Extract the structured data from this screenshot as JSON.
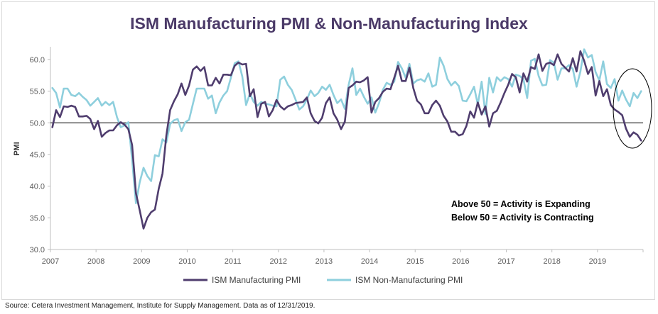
{
  "title": "ISM Manufacturing PMI & Non-Manufacturing Index",
  "source": "Source: Cetera Investment Management, Institute for Supply Management. Data as of 12/31/2019.",
  "annotation_lines": [
    "Above 50 = Activity is Expanding",
    "Below 50 = Activity is Contracting"
  ],
  "colors": {
    "manufacturing": "#4f3d6e",
    "non_manufacturing": "#8ecfdd",
    "title": "#4b3a68"
  },
  "chart_data": {
    "type": "line",
    "title": "ISM Manufacturing PMI & Non-Manufacturing Index",
    "xlabel": "",
    "ylabel": "PMI",
    "ylim": [
      30,
      62
    ],
    "yticks": [
      "30.0",
      "35.0",
      "40.0",
      "45.0",
      "50.0",
      "55.0",
      "60.0"
    ],
    "xticks": [
      "2007",
      "2008",
      "2009",
      "2010",
      "2011",
      "2012",
      "2013",
      "2014",
      "2015",
      "2016",
      "2017",
      "2018",
      "2019"
    ],
    "x_range": [
      "2007-01",
      "2019-12"
    ],
    "reference_line": 50,
    "grid": false,
    "legend": "bottom",
    "highlight": "late 2019 circled",
    "series": [
      {
        "name": "ISM Manufacturing PMI",
        "start": "2007-01",
        "values": [
          49.3,
          52.0,
          50.9,
          52.6,
          52.5,
          52.7,
          52.5,
          51.0,
          51.0,
          51.1,
          50.6,
          49.0,
          50.3,
          47.8,
          48.4,
          48.8,
          48.8,
          49.6,
          50.1,
          49.7,
          49.0,
          46.5,
          38.9,
          36.2,
          33.3,
          35.0,
          35.9,
          36.3,
          39.6,
          42.0,
          48.0,
          52.0,
          53.4,
          54.5,
          56.2,
          54.4,
          55.9,
          58.4,
          58.9,
          58.2,
          58.8,
          55.9,
          55.9,
          57.1,
          56.2,
          57.6,
          57.6,
          57.5,
          59.0,
          59.5,
          59.2,
          59.3,
          54.2,
          55.3,
          50.9,
          53.0,
          53.3,
          51.0,
          52.0,
          53.6,
          52.6,
          52.1,
          52.6,
          52.8,
          53.1,
          53.2,
          53.3,
          54.0,
          51.5,
          50.3,
          49.9,
          50.8,
          53.1,
          54.0,
          51.5,
          50.5,
          49.0,
          50.2,
          55.5,
          55.9,
          56.5,
          56.4,
          56.7,
          57.2,
          51.6,
          53.3,
          53.9,
          54.9,
          55.4,
          55.3,
          57.1,
          59.0,
          56.6,
          56.6,
          58.7,
          55.5,
          53.5,
          52.9,
          51.5,
          51.5,
          52.8,
          53.5,
          52.7,
          51.1,
          50.2,
          48.6,
          48.6,
          48.0,
          48.2,
          49.5,
          51.8,
          50.8,
          53.2,
          51.3,
          52.6,
          49.4,
          51.5,
          51.9,
          53.2,
          54.7,
          56.0,
          57.7,
          57.2,
          54.8,
          57.8,
          56.5,
          58.8,
          58.5,
          60.8,
          58.2,
          59.3,
          59.5,
          59.1,
          60.8,
          59.3,
          58.7,
          58.1,
          60.2,
          58.1,
          61.3,
          59.8,
          57.7,
          58.8,
          54.3,
          56.6,
          54.2,
          55.3,
          52.8,
          52.1,
          51.7,
          51.2,
          49.1,
          47.8,
          48.5,
          48.1,
          47.2
        ]
      },
      {
        "name": "ISM Non-Manufacturing PMI",
        "start": "2007-01",
        "values": [
          55.5,
          54.7,
          52.4,
          55.4,
          55.4,
          54.4,
          54.2,
          54.7,
          54.1,
          53.6,
          52.7,
          53.3,
          53.9,
          52.7,
          53.3,
          52.8,
          53.3,
          50.9,
          49.3,
          49.6,
          50.1,
          44.2,
          37.3,
          40.6,
          42.9,
          41.6,
          40.8,
          44.9,
          44.7,
          47.4,
          46.9,
          49.8,
          50.4,
          50.6,
          48.7,
          50.1,
          50.5,
          53.0,
          55.4,
          55.4,
          55.4,
          53.8,
          54.3,
          51.5,
          53.2,
          54.3,
          55.0,
          57.1,
          59.4,
          59.7,
          57.3,
          52.8,
          54.6,
          53.3,
          52.7,
          53.3,
          53.0,
          52.9,
          52.7,
          52.6,
          56.8,
          57.3,
          56.0,
          55.2,
          53.7,
          52.1,
          52.6,
          53.7,
          55.1,
          54.2,
          54.7,
          55.7,
          55.2,
          56.0,
          54.4,
          53.1,
          53.7,
          52.2,
          56.0,
          58.6,
          54.4,
          55.4,
          54.1,
          53.0,
          54.0,
          51.6,
          53.1,
          55.2,
          56.3,
          56.0,
          56.5,
          59.6,
          58.6,
          57.1,
          59.3,
          56.2,
          56.7,
          56.9,
          56.5,
          57.8,
          55.7,
          56.0,
          60.3,
          59.0,
          56.9,
          55.9,
          56.5,
          55.8,
          53.5,
          53.4,
          54.5,
          55.7,
          52.9,
          56.5,
          51.4,
          57.1,
          54.8,
          57.2,
          56.6,
          57.2,
          56.9,
          55.7,
          57.6,
          57.4,
          56.9,
          53.9,
          59.8,
          60.1,
          57.4,
          55.9,
          56.0,
          59.9,
          59.5,
          56.8,
          58.6,
          58.6,
          59.1,
          58.5,
          55.7,
          58.1,
          61.6,
          60.3,
          60.7,
          58.0,
          56.7,
          59.7,
          56.1,
          55.5,
          56.9,
          53.5,
          55.1,
          53.7,
          52.6,
          54.7,
          53.9,
          55.0
        ]
      }
    ]
  }
}
